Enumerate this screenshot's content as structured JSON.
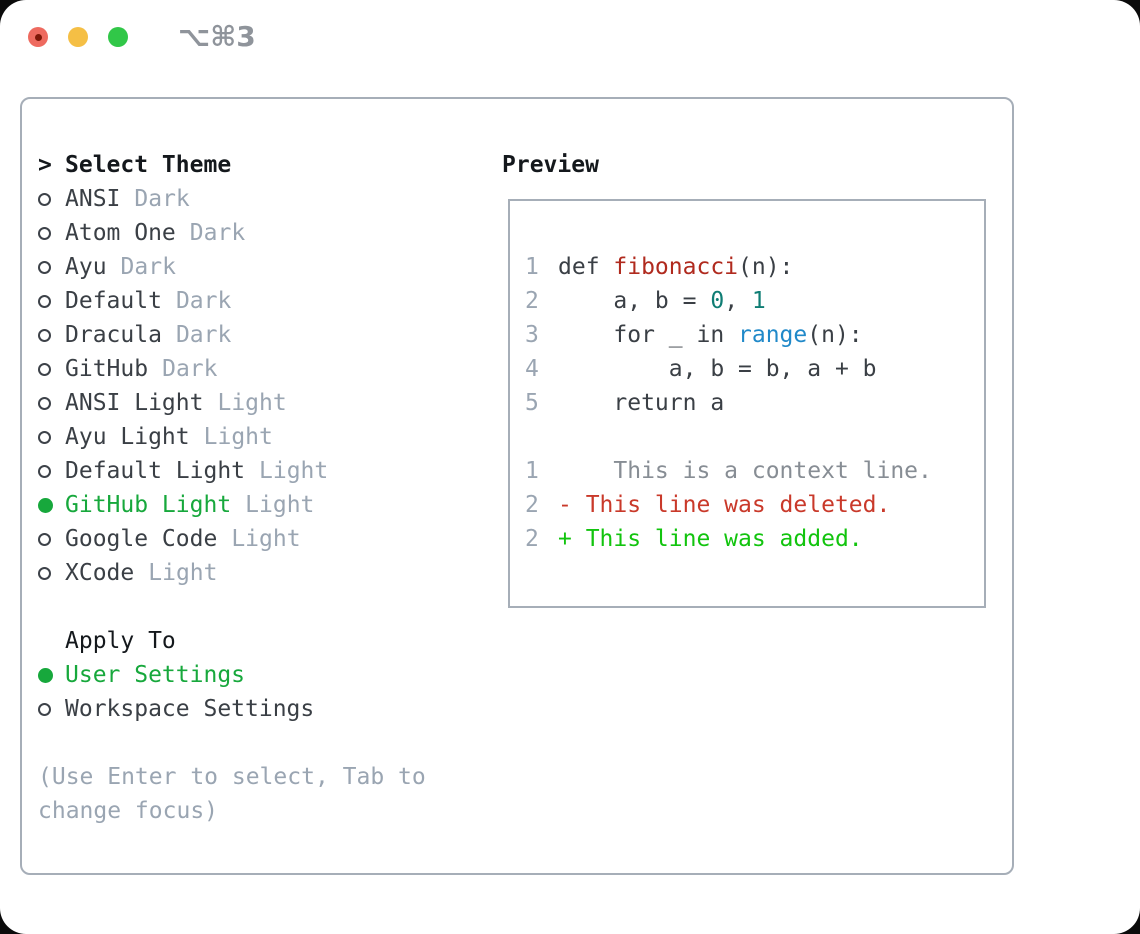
{
  "window": {
    "title": "⌥⌘3"
  },
  "theme_selector": {
    "prompt_char": ">",
    "header": "Select Theme",
    "themes": [
      {
        "name": "ANSI",
        "variant": "Dark",
        "selected": false
      },
      {
        "name": "Atom One",
        "variant": "Dark",
        "selected": false
      },
      {
        "name": "Ayu",
        "variant": "Dark",
        "selected": false
      },
      {
        "name": "Default",
        "variant": "Dark",
        "selected": false
      },
      {
        "name": "Dracula",
        "variant": "Dark",
        "selected": false
      },
      {
        "name": "GitHub",
        "variant": "Dark",
        "selected": false
      },
      {
        "name": "ANSI Light",
        "variant": "Light",
        "selected": false
      },
      {
        "name": "Ayu Light",
        "variant": "Light",
        "selected": false
      },
      {
        "name": "Default Light",
        "variant": "Light",
        "selected": false
      },
      {
        "name": "GitHub Light",
        "variant": "Light",
        "selected": true
      },
      {
        "name": "Google Code",
        "variant": "Light",
        "selected": false
      },
      {
        "name": "XCode",
        "variant": "Light",
        "selected": false
      }
    ]
  },
  "apply_to": {
    "header": "Apply To",
    "options": [
      {
        "label": "User Settings",
        "selected": true
      },
      {
        "label": "Workspace Settings",
        "selected": false
      }
    ]
  },
  "hint": "(Use Enter to select, Tab to change focus)",
  "preview": {
    "title": "Preview",
    "lines": [
      {
        "num": "1",
        "segments": [
          {
            "t": "def ",
            "c": "fg"
          },
          {
            "t": "fibonacci",
            "c": "red"
          },
          {
            "t": "(n):",
            "c": "fg"
          }
        ]
      },
      {
        "num": "2",
        "segments": [
          {
            "t": "    a, b = ",
            "c": "fg"
          },
          {
            "t": "0",
            "c": "teal"
          },
          {
            "t": ", ",
            "c": "fg"
          },
          {
            "t": "1",
            "c": "teal"
          }
        ]
      },
      {
        "num": "3",
        "segments": [
          {
            "t": "    for _ in ",
            "c": "fg"
          },
          {
            "t": "range",
            "c": "blue"
          },
          {
            "t": "(n):",
            "c": "fg"
          }
        ]
      },
      {
        "num": "4",
        "segments": [
          {
            "t": "        a, b = b, a + b",
            "c": "fg"
          }
        ]
      },
      {
        "num": "5",
        "segments": [
          {
            "t": "    return a",
            "c": "fg"
          }
        ]
      },
      {
        "num": "",
        "segments": []
      },
      {
        "num": "1",
        "segments": [
          {
            "t": "    This is a context line.",
            "c": "ctx"
          }
        ]
      },
      {
        "num": "2",
        "segments": [
          {
            "t": "- This line was deleted.",
            "c": "del"
          }
        ]
      },
      {
        "num": "2",
        "segments": [
          {
            "t": "+ This line was added.",
            "c": "add"
          }
        ]
      }
    ]
  },
  "colors": {
    "fg": "#3a3f45",
    "heading": "#14181c",
    "muted": "#9aa5b2",
    "context": "#878d94",
    "green_selected": "#17a83c",
    "green_added": "#12c40e",
    "red_deleted": "#c9392a",
    "red_function": "#b02a1e",
    "teal_number": "#0f7d74",
    "blue_builtin": "#2089c9",
    "border": "#a6aeb8",
    "title_gray": "#8f949b",
    "light_red": "#ee6a5f",
    "light_yellow": "#f5bf45",
    "light_green": "#31c748"
  }
}
